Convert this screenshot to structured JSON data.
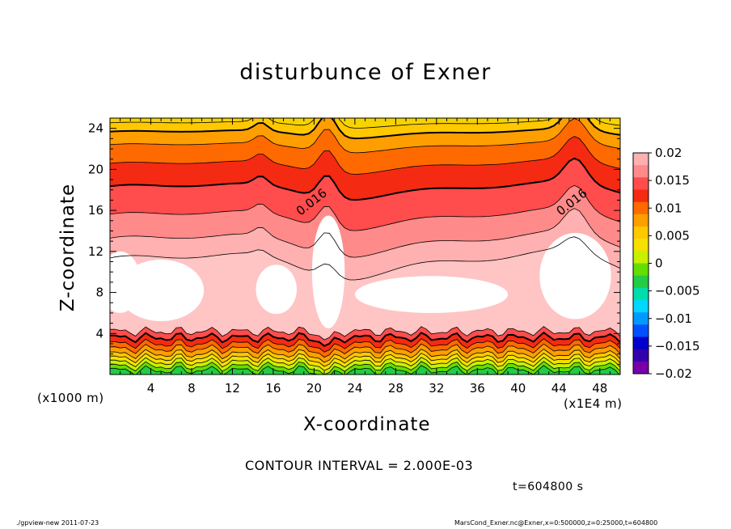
{
  "chart_data": {
    "type": "heatmap",
    "title": "disturbunce of Exner",
    "xlabel": "X-coordinate",
    "ylabel": "Z-coordinate",
    "x_units_left": "(x1000 m)",
    "x_units_right": "(x1E4 m)",
    "xlim": [
      0,
      50
    ],
    "ylim": [
      0,
      25
    ],
    "x_ticks": [
      4,
      8,
      12,
      16,
      20,
      24,
      28,
      32,
      36,
      40,
      44,
      48
    ],
    "y_ticks": [
      4,
      8,
      12,
      16,
      20,
      24
    ],
    "contour_interval_text": "CONTOUR INTERVAL = 2.000E-03",
    "time_text": "t=604800 s",
    "contour_labels": [
      {
        "text": "0.016",
        "x": 20,
        "z": 16.5
      },
      {
        "text": "0.016",
        "x": 45.5,
        "z": 16.5
      }
    ],
    "colorbar": {
      "range": [
        -0.02,
        0.02
      ],
      "ticks": [
        0.02,
        0.015,
        0.01,
        0.005,
        0,
        -0.005,
        -0.01,
        -0.015,
        -0.02
      ],
      "tick_labels": [
        "0.02",
        "0.015",
        "0.01",
        "0.005",
        "0",
        "−0.005",
        "−0.01",
        "−0.015",
        "−0.02"
      ],
      "colors": [
        "#ffb0b0",
        "#ff8a8a",
        "#ff4c4c",
        "#f52a12",
        "#ff6a00",
        "#ff9e00",
        "#ffc800",
        "#f5e000",
        "#c8f000",
        "#66dd00",
        "#22cc44",
        "#00ddaa",
        "#00d8ff",
        "#0099ff",
        "#0050ff",
        "#0000cc",
        "#3300aa",
        "#7700aa"
      ]
    },
    "field_levels": [
      "#ffffff",
      "#ffb0b0",
      "#ff8a8a",
      "#ff4c4c",
      "#f52a12",
      "#ff6a00",
      "#ff9e00",
      "#ffc800",
      "#f5e000",
      "#c8f000",
      "#66dd00"
    ]
  },
  "footer": {
    "left": "./gpview-new   2011-07-23",
    "right": "MarsCond_Exner.nc@Exner,x=0:500000,z=0:25000,t=604800"
  }
}
